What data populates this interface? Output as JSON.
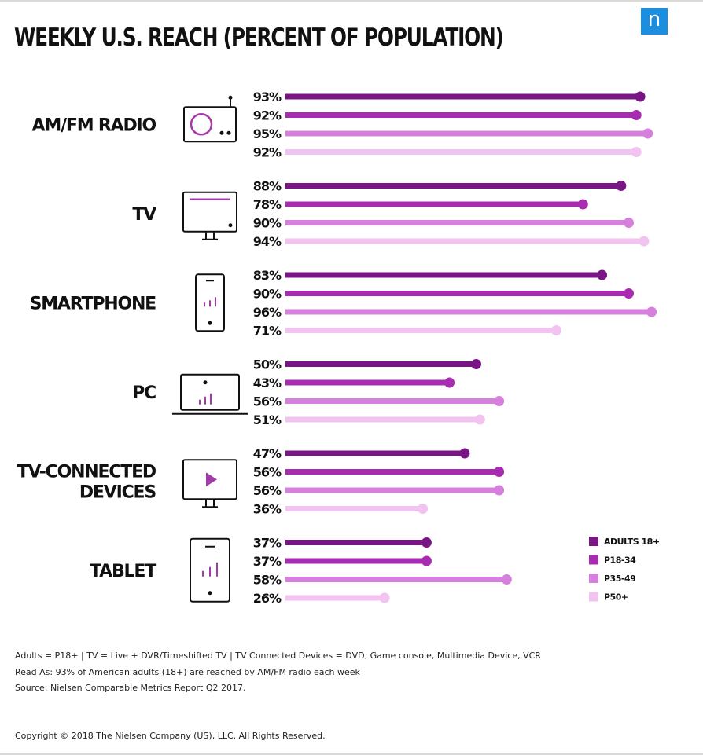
{
  "title": "WEEKLY U.S. REACH (PERCENT OF POPULATION)",
  "logo_text": "n",
  "colors": {
    "adults18": "#7a1585",
    "p18_34": "#a82cb0",
    "p35_49": "#d77fdc",
    "p50": "#f2c2f0",
    "logo": "#1c8ee0",
    "icon_accent": "#a23ba9"
  },
  "chart_data": {
    "type": "bar",
    "orientation": "horizontal",
    "title": "WEEKLY U.S. REACH (PERCENT OF POPULATION)",
    "categories": [
      {
        "label": [
          "AM/FM RADIO"
        ],
        "icon": "radio-icon"
      },
      {
        "label": [
          "TV"
        ],
        "icon": "tv-icon"
      },
      {
        "label": [
          "SMARTPHONE"
        ],
        "icon": "smartphone-icon"
      },
      {
        "label": [
          "PC"
        ],
        "icon": "laptop-icon"
      },
      {
        "label": [
          "TV-CONNECTED",
          "DEVICES"
        ],
        "icon": "tv-play-icon"
      },
      {
        "label": [
          "TABLET"
        ],
        "icon": "tablet-icon"
      }
    ],
    "series": [
      {
        "name": "ADULTS 18+",
        "color": "#7a1585",
        "values": [
          93,
          88,
          83,
          50,
          47,
          37
        ]
      },
      {
        "name": "P18-34",
        "color": "#a82cb0",
        "values": [
          92,
          78,
          90,
          43,
          56,
          37
        ]
      },
      {
        "name": "P35-49",
        "color": "#d77fdc",
        "values": [
          95,
          90,
          96,
          56,
          56,
          58
        ]
      },
      {
        "name": "P50+",
        "color": "#f2c2f0",
        "values": [
          92,
          94,
          71,
          51,
          36,
          26
        ]
      }
    ],
    "value_suffix": "%",
    "xlim": [
      0,
      100
    ],
    "legend_position": "right",
    "grid": false
  },
  "notes": [
    "Adults = P18+ | TV = Live + DVR/Timeshifted TV | TV Connected Devices = DVD, Game console, Multimedia Device, VCR",
    "Read As: 93% of American adults (18+) are reached by AM/FM radio each week",
    "Source: Nielsen Comparable Metrics Report Q2 2017."
  ],
  "copyright": "Copyright © 2018 The Nielsen Company (US), LLC. All Rights Reserved."
}
